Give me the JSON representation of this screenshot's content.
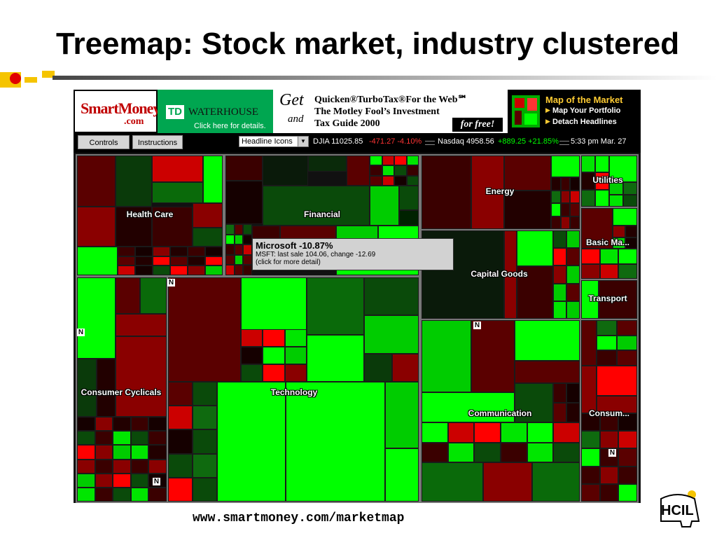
{
  "slide": {
    "title": "Treemap: Stock market, industry clustered",
    "url": "www.smartmoney.com/marketmap",
    "logo_text": "HCIL"
  },
  "banner": {
    "smartmoney_logo": "SmartMoney",
    "smartmoney_tld": ".com",
    "td_logo": "TD",
    "waterhouse": "WATERHOUSE",
    "click_here": "Click here for details.",
    "ad_get": "Get",
    "ad_and": "and",
    "ad_line1": "Quicken®TurboTax®For the Web℠",
    "ad_line2": "The Motley Fool’s Investment",
    "ad_line3": "Tax Guide 2000",
    "ad_free": "for free!",
    "map_title": "Map of the Market",
    "map_link1": "Map Your Portfolio",
    "map_link2": "Detach Headlines"
  },
  "toolbar": {
    "controls": "Controls",
    "instructions": "Instructions",
    "select_value": "Headline Icons",
    "djia_label": "DJIA 11025.85",
    "djia_change": "-471.27 -4.10%",
    "nasdaq_label": "Nasdaq 4958.56",
    "nasdaq_change": "+889.25 +21.85%",
    "time": "5:33 pm  Mar. 27"
  },
  "sectors": [
    {
      "key": "health",
      "label": "Health Care"
    },
    {
      "key": "financial",
      "label": "Financial"
    },
    {
      "key": "energy",
      "label": "Energy"
    },
    {
      "key": "utilities",
      "label": "Utilities"
    },
    {
      "key": "basic",
      "label": "Basic Ma..."
    },
    {
      "key": "capital",
      "label": "Capital Goods"
    },
    {
      "key": "transport",
      "label": "Transport"
    },
    {
      "key": "cyclicals",
      "label": "Consumer Cyclicals"
    },
    {
      "key": "technology",
      "label": "Technology"
    },
    {
      "key": "communication",
      "label": "Communication"
    },
    {
      "key": "consumer",
      "label": "Consum..."
    }
  ],
  "badge": "N",
  "tooltip": {
    "title": "Microsoft -10.87%",
    "line1": "MSFT: last sale 104.06,  change -12.69",
    "line2": "(click for more detail)"
  },
  "colors": {
    "bright_green": "#00ff00",
    "green": "#00cc00",
    "dark_green": "#0a4a0a",
    "dark_red": "#5a0000",
    "red": "#cc0000",
    "bright_red": "#ff0000",
    "up": "#00ff00",
    "down": "#ff3333"
  }
}
